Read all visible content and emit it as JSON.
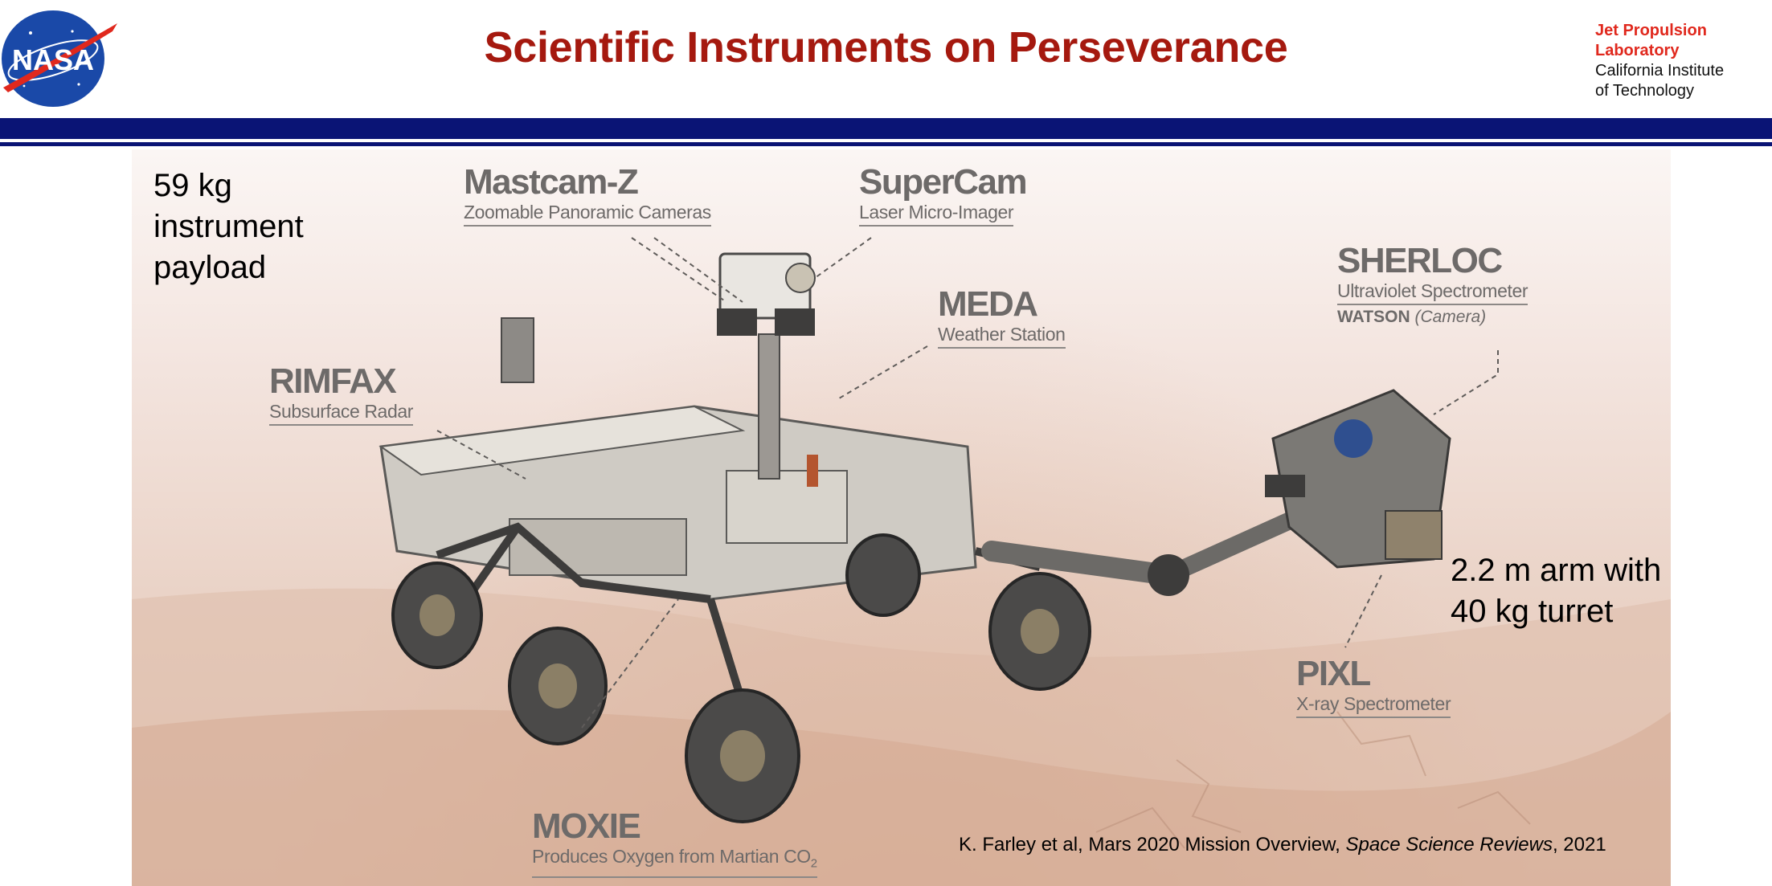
{
  "header": {
    "title": "Scientific Instruments on Perseverance",
    "logo_text": "NASA",
    "jpl": {
      "line1": "Jet Propulsion",
      "line2": "Laboratory",
      "line3": "California Institute",
      "line4": "of Technology"
    }
  },
  "notes": {
    "payload": [
      "59 kg",
      "instrument",
      "payload"
    ],
    "arm": [
      "2.2 m arm with",
      "40 kg turret"
    ]
  },
  "instruments": {
    "mastcamz": {
      "name": "Mastcam-Z",
      "desc": "Zoomable Panoramic Cameras"
    },
    "supercam": {
      "name": "SuperCam",
      "desc": "Laser Micro-Imager"
    },
    "meda": {
      "name": "MEDA",
      "desc": "Weather Station"
    },
    "sherloc": {
      "name": "SHERLOC",
      "desc": "Ultraviolet Spectrometer",
      "extra_bold": "WATSON",
      "extra_italic": "(Camera)"
    },
    "rimfax": {
      "name": "RIMFAX",
      "desc": "Subsurface Radar"
    },
    "pixl": {
      "name": "PIXL",
      "desc": "X-ray Spectrometer"
    },
    "moxie": {
      "name": "MOXIE",
      "desc": "Produces Oxygen from Martian CO",
      "desc_sub": "2"
    }
  },
  "citation": {
    "prefix": "K. Farley et al, Mars 2020 Mission Overview, ",
    "journal": "Space Science Reviews",
    "suffix": ", 2021"
  },
  "colors": {
    "title_red": "#a5190f",
    "jpl_red": "#e0281d",
    "navy_bar": "#0a1475",
    "label_gray": "#6d6a69"
  }
}
